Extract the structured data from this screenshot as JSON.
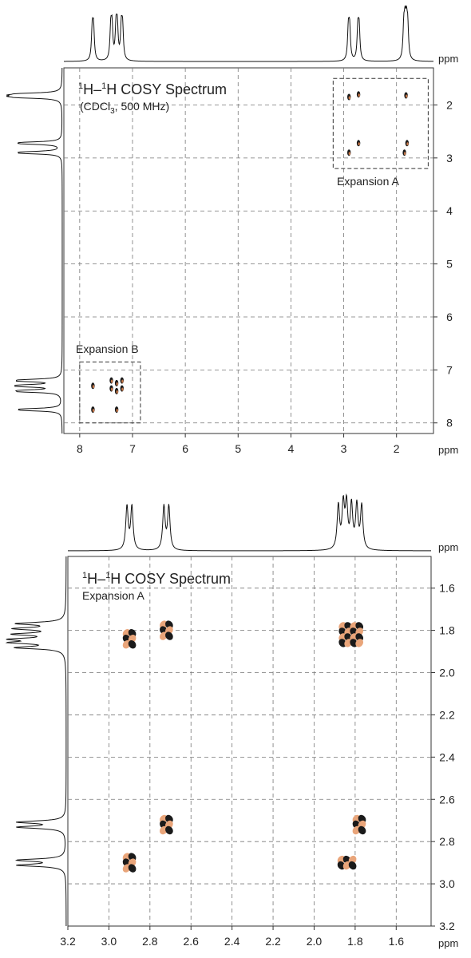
{
  "chart_data": [
    {
      "type": "heatmap",
      "title": "1H–1H COSY Spectrum",
      "title_parts": {
        "pre": "1",
        "mid1": "H–",
        "sup2": "1",
        "mid2": "H COSY Spectrum"
      },
      "subtitle": "(CDCl3, 500 MHz)",
      "subtitle_parts": {
        "pre": "(CDCl",
        "sub": "3",
        "post": ", 500 MHz)"
      },
      "xlabel": "ppm",
      "ylabel": "ppm",
      "xlim": [
        8.3,
        1.3
      ],
      "ylim": [
        1.3,
        8.2
      ],
      "x_ticks": [
        "8",
        "7",
        "6",
        "5",
        "4",
        "3",
        "2"
      ],
      "x_tick_values": [
        8,
        7,
        6,
        5,
        4,
        3,
        2
      ],
      "y_ticks": [
        "2",
        "3",
        "4",
        "5",
        "6",
        "7",
        "8"
      ],
      "y_tick_values": [
        2,
        3,
        4,
        5,
        6,
        7,
        8
      ],
      "grid": true,
      "projection_peaks_ppm": [
        7.75,
        7.4,
        7.3,
        7.2,
        2.9,
        2.72,
        1.85,
        1.8
      ],
      "cross_peaks": [
        {
          "x": 2.9,
          "y": 1.85
        },
        {
          "x": 2.72,
          "y": 1.8
        },
        {
          "x": 1.82,
          "y": 1.82
        },
        {
          "x": 2.72,
          "y": 2.72
        },
        {
          "x": 1.8,
          "y": 2.72
        },
        {
          "x": 2.9,
          "y": 2.9
        },
        {
          "x": 1.85,
          "y": 2.9
        },
        {
          "x": 7.75,
          "y": 7.3
        },
        {
          "x": 7.4,
          "y": 7.2
        },
        {
          "x": 7.3,
          "y": 7.25
        },
        {
          "x": 7.2,
          "y": 7.2
        },
        {
          "x": 7.4,
          "y": 7.35
        },
        {
          "x": 7.3,
          "y": 7.4
        },
        {
          "x": 7.75,
          "y": 7.75
        },
        {
          "x": 7.3,
          "y": 7.75
        },
        {
          "x": 7.2,
          "y": 7.35
        }
      ],
      "expansions": [
        {
          "label": "Expansion A",
          "x_range": [
            3.2,
            1.4
          ],
          "y_range": [
            1.5,
            3.2
          ]
        },
        {
          "label": "Expansion B",
          "x_range": [
            8.0,
            6.85
          ],
          "y_range": [
            6.85,
            8.0
          ]
        }
      ]
    },
    {
      "type": "heatmap",
      "title": "1H–1H COSY Spectrum",
      "title_parts": {
        "pre": "1",
        "mid1": "H–",
        "sup2": "1",
        "mid2": "H COSY Spectrum"
      },
      "subtitle": "Expansion A",
      "xlabel": "ppm",
      "ylabel": "ppm",
      "xlim": [
        3.2,
        1.43
      ],
      "ylim": [
        1.45,
        3.2
      ],
      "x_ticks": [
        "3.2",
        "3.0",
        "2.8",
        "2.6",
        "2.4",
        "2.2",
        "2.0",
        "1.8",
        "1.6"
      ],
      "x_tick_values": [
        3.2,
        3.0,
        2.8,
        2.6,
        2.4,
        2.2,
        2.0,
        1.8,
        1.6
      ],
      "y_ticks": [
        "1.6",
        "1.8",
        "2.0",
        "2.2",
        "2.4",
        "2.6",
        "2.8",
        "3.0",
        "3.2"
      ],
      "y_tick_values": [
        1.6,
        1.8,
        2.0,
        2.2,
        2.4,
        2.6,
        2.8,
        3.0,
        3.2
      ],
      "grid": true,
      "projection_peaks_ppm": [
        2.9,
        2.72,
        1.87,
        1.83,
        1.78
      ],
      "cross_peaks": [
        {
          "x": 2.9,
          "y": 1.84,
          "size": 1.0
        },
        {
          "x": 2.72,
          "y": 1.8,
          "size": 1.0
        },
        {
          "x": 1.82,
          "y": 1.82,
          "size": 2.3
        },
        {
          "x": 2.72,
          "y": 2.72,
          "size": 1.0
        },
        {
          "x": 1.78,
          "y": 2.72,
          "size": 1.1
        },
        {
          "x": 2.9,
          "y": 2.9,
          "size": 1.0
        },
        {
          "x": 1.84,
          "y": 2.9,
          "size": 1.5
        }
      ],
      "colors": {
        "positive": "#1a1a1a",
        "negative": "#e9a57a"
      }
    }
  ]
}
